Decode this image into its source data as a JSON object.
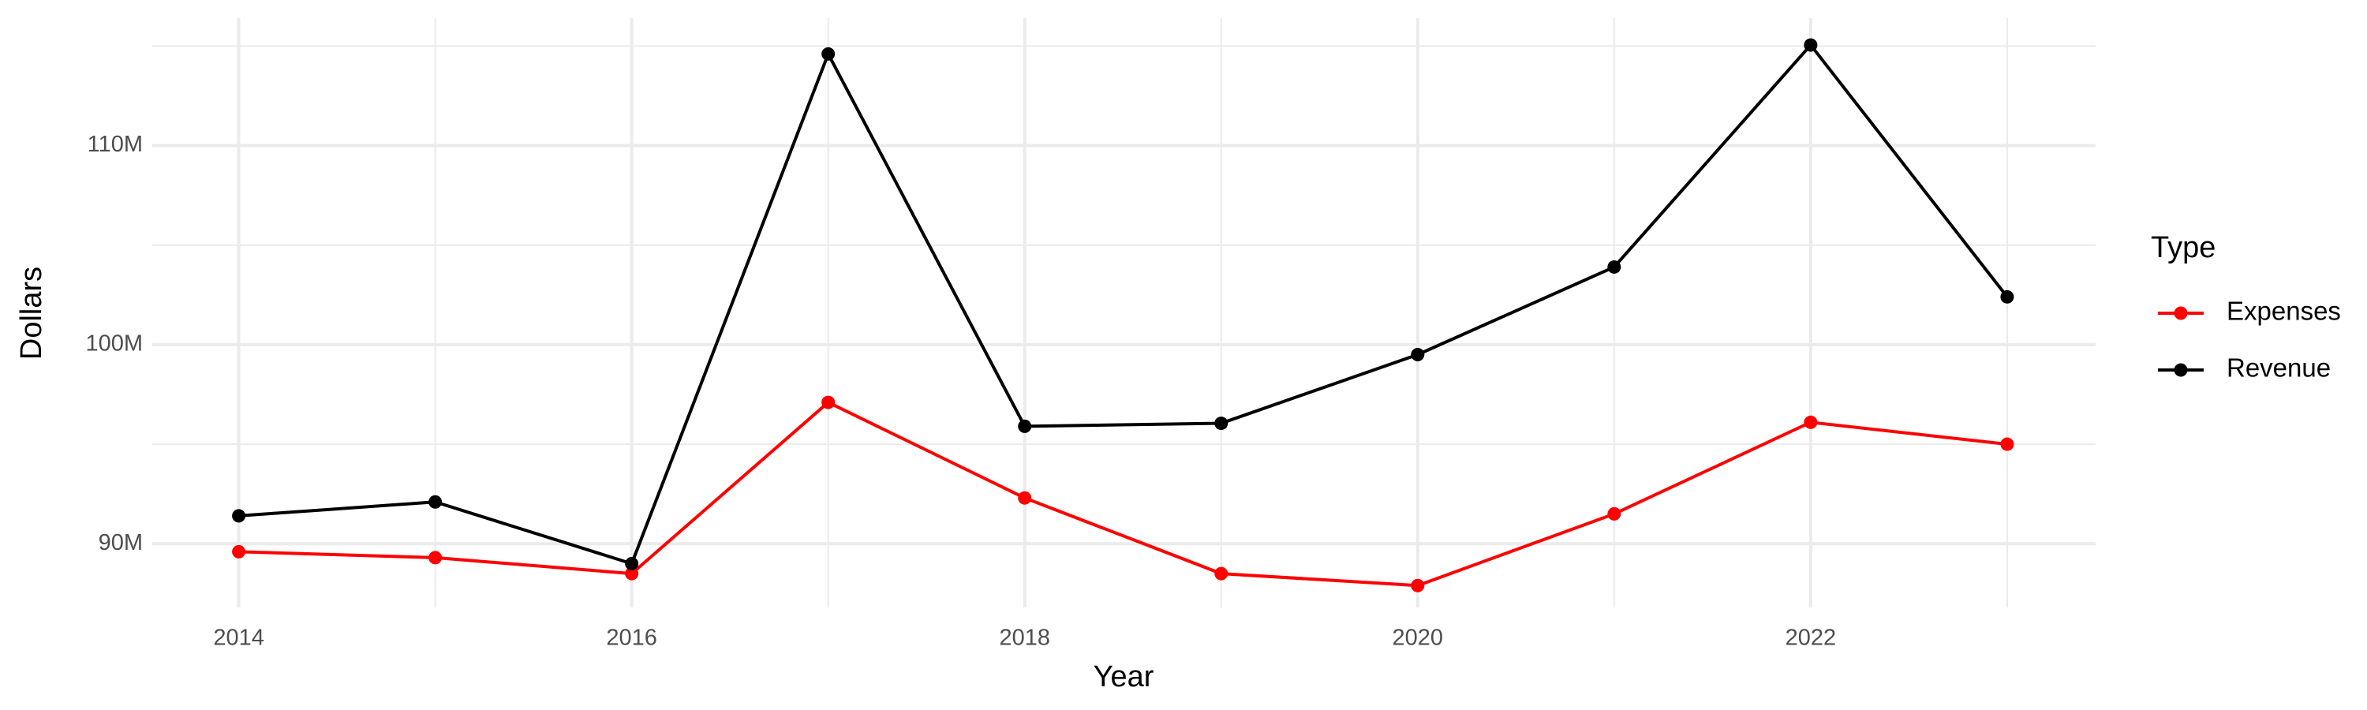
{
  "chart_data": {
    "type": "line",
    "x_label": "Year",
    "y_label": "Dollars",
    "legend_title": "Type",
    "legend_position": "right",
    "x": [
      2014,
      2015,
      2016,
      2017,
      2018,
      2019,
      2020,
      2021,
      2022,
      2023
    ],
    "series": [
      {
        "name": "Expenses",
        "color": "#ff0000",
        "values": [
          89600000,
          89300000,
          88500000,
          97100000,
          92300000,
          88500000,
          87900000,
          91500000,
          96100000,
          95000000
        ]
      },
      {
        "name": "Revenue",
        "color": "#000000",
        "values": [
          91400000,
          92100000,
          89000000,
          114600000,
          95900000,
          96050000,
          99500000,
          103900000,
          115050000,
          102400000
        ]
      }
    ],
    "xlim": [
      2013.56,
      2023.45
    ],
    "xticks": [
      2014,
      2016,
      2018,
      2020,
      2022
    ],
    "x_minor_ticks": [
      2015,
      2017,
      2019,
      2021,
      2023
    ],
    "ylim": [
      86800000,
      116400000
    ],
    "yticks": [
      {
        "value": 90000000,
        "label": "90M"
      },
      {
        "value": 100000000,
        "label": "100M"
      },
      {
        "value": 110000000,
        "label": "110M"
      }
    ],
    "y_minor_ticks": [
      95000000,
      105000000,
      115000000
    ],
    "grid": true
  }
}
